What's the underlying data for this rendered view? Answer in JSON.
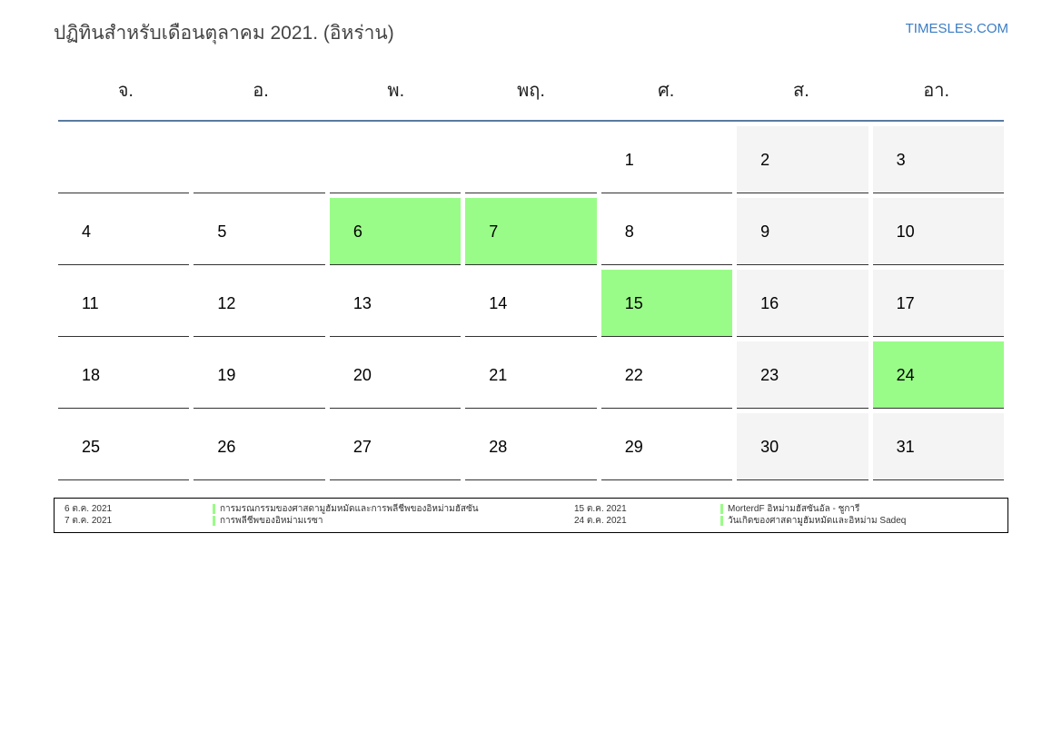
{
  "title": "ปฏิทินสำหรับเดือนตุลาคม 2021. (อิหร่าน)",
  "site": "TIMESLES.COM",
  "weekdays": [
    "จ.",
    "อ.",
    "พ.",
    "พฤ.",
    "ศ.",
    "ส.",
    "อา."
  ],
  "colors": {
    "holiday": "#9afc88",
    "weekend": "#f4f4f4",
    "header_line": "#5a7aa0"
  },
  "first_weekday_offset": 4,
  "days_in_month": 31,
  "holiday_days": [
    6,
    7,
    15,
    24
  ],
  "legend": [
    {
      "date": "6 ต.ค. 2021",
      "name": "การมรณกรรมของศาสดามูฮัมหมัดและการพลีชีพของอิหม่ามฮัสซัน"
    },
    {
      "date": "7 ต.ค. 2021",
      "name": "การพลีชีพของอิหม่ามเรซา"
    },
    {
      "date": "15 ต.ค. 2021",
      "name": "MorterdF อิหม่ามฮัสซันอัล - ชูการี"
    },
    {
      "date": "24 ต.ค. 2021",
      "name": "วันเกิดของศาสดามูฮัมหมัดและอิหม่าม Sadeq"
    }
  ]
}
